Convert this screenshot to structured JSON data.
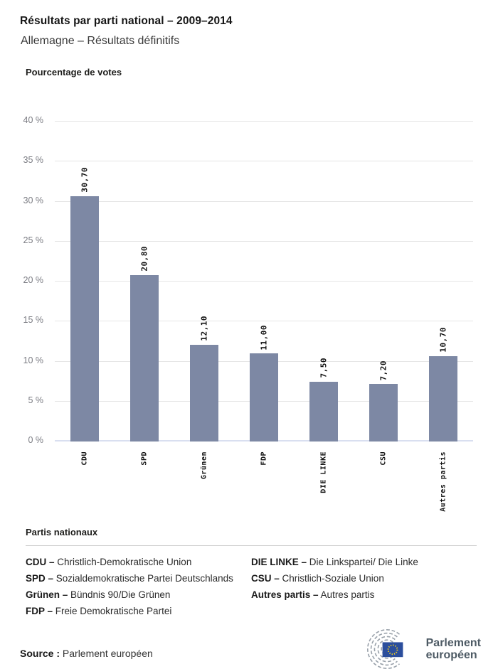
{
  "header": {
    "title": "Résultats par parti national – 2009–2014",
    "subtitle": "Allemagne – Résultats définitifs"
  },
  "chart_data": {
    "type": "bar",
    "title": "Pourcentage de votes",
    "categories": [
      "CDU",
      "SPD",
      "Grünen",
      "FDP",
      "DIE LINKE",
      "CSU",
      "Autres partis"
    ],
    "values": [
      30.7,
      20.8,
      12.1,
      11.0,
      7.5,
      7.2,
      10.7
    ],
    "value_labels": [
      "30,70",
      "20,80",
      "12,10",
      "11,00",
      "7,50",
      "7,20",
      "10,70"
    ],
    "ylabel": "Pourcentage de votes",
    "xlabel": "",
    "ylim": [
      0,
      40
    ],
    "ytick_step": 5,
    "ytick_suffix": " %",
    "grid": true,
    "legend_position": "none",
    "bar_color": "#7d88a4",
    "gridline_color": "#e5e5e5",
    "baseline_color": "#d9dff0"
  },
  "legend": {
    "heading": "Partis nationaux",
    "columns": [
      [
        {
          "abbr": "CDU –",
          "name": "Christlich-Demokratische Union"
        },
        {
          "abbr": "SPD –",
          "name": "Sozialdemokratische Partei Deutschlands"
        },
        {
          "abbr": "Grünen –",
          "name": "Bündnis 90/Die Grünen"
        },
        {
          "abbr": "FDP –",
          "name": "Freie Demokratische Partei"
        }
      ],
      [
        {
          "abbr": "DIE LINKE –",
          "name": "Die Linkspartei/ Die Linke"
        },
        {
          "abbr": "CSU –",
          "name": "Christlich-Soziale Union"
        },
        {
          "abbr": "Autres partis –",
          "name": "Autres partis"
        }
      ]
    ]
  },
  "footer": {
    "source_label": "Source :",
    "source_value": " Parlement européen",
    "logo_line1": "Parlement",
    "logo_line2": "européen",
    "flag_blue": "#2b4e9c",
    "star_yellow": "#ffd616",
    "hemicycle_gray": "#99a1aa"
  }
}
